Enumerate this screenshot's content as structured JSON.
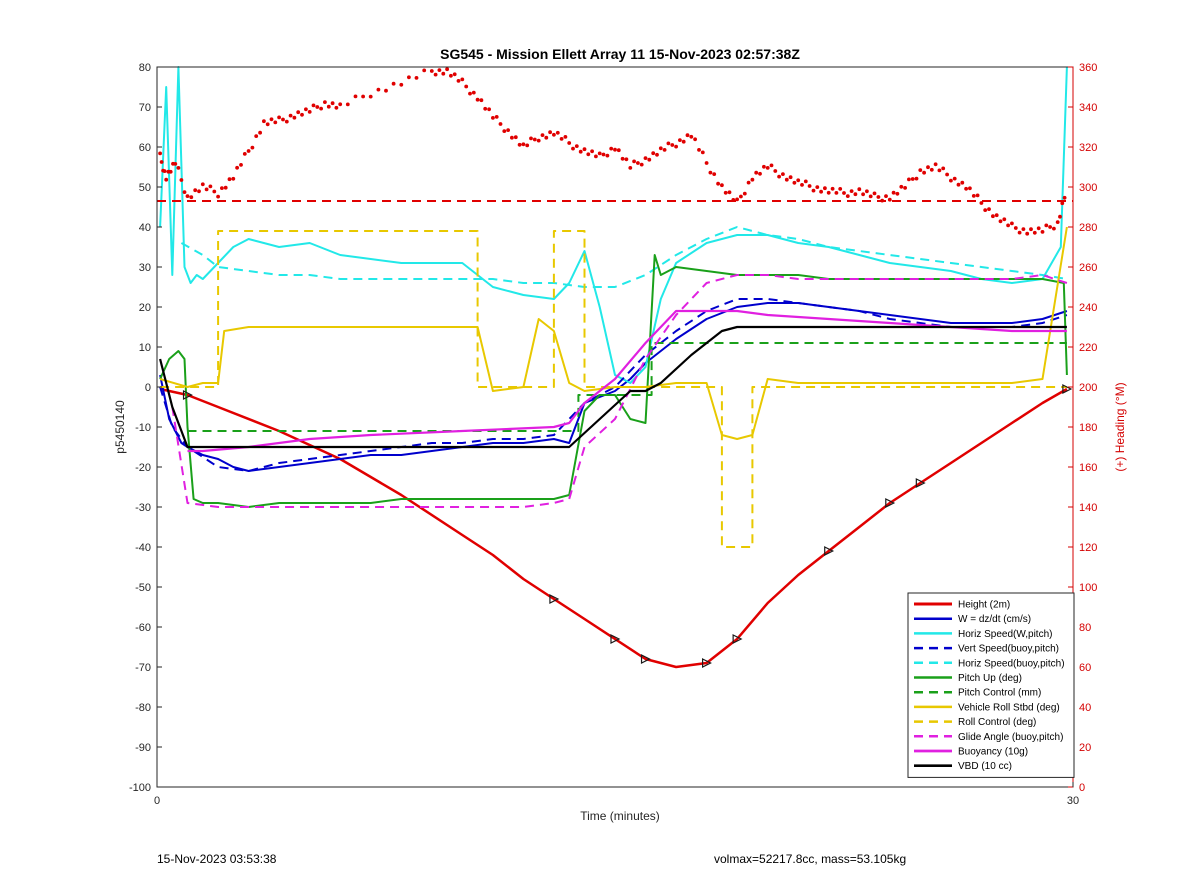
{
  "chart_data": {
    "type": "line",
    "title": "SG545 - Mission Ellett Array 11 15-Nov-2023 02:57:38Z",
    "xlabel": "Time (minutes)",
    "ylabel": "p5450140",
    "ylabel_right": "(+) Heading (°M)",
    "xlim": [
      0,
      30
    ],
    "ylim": [
      -100,
      80
    ],
    "ylim_right": [
      0,
      360
    ],
    "x_ticks": [
      "0",
      "30"
    ],
    "y_ticks": [
      "80",
      "70",
      "60",
      "50",
      "40",
      "30",
      "20",
      "10",
      "0",
      "-10",
      "-20",
      "-30",
      "-40",
      "-50",
      "-60",
      "-70",
      "-80",
      "-90",
      "-100"
    ],
    "y_right_ticks": [
      "360",
      "340",
      "320",
      "300",
      "280",
      "260",
      "240",
      "220",
      "200",
      "180",
      "160",
      "140",
      "120",
      "100",
      "80",
      "60",
      "40",
      "20",
      "0"
    ],
    "legend_position": "bottom-right",
    "grid": false,
    "series": [
      {
        "name": "Height (2m)",
        "color": "#e00000",
        "style": "solid",
        "width": 2.5,
        "x": [
          0.1,
          1,
          2,
          4,
          6,
          8,
          10,
          11,
          12,
          13,
          14,
          15,
          16,
          17,
          18,
          19,
          20,
          21,
          22,
          23,
          24,
          25,
          26,
          27,
          28,
          29,
          29.8
        ],
        "y": [
          -0.5,
          -2,
          -5,
          -11,
          -18,
          -27,
          -37,
          -42,
          -48,
          -53,
          -58,
          -63,
          -68,
          -70,
          -69,
          -63,
          -54,
          -47,
          -41,
          -35,
          -29,
          -24,
          -19,
          -14,
          -9,
          -4,
          -0.5
        ]
      },
      {
        "name": "W = dz/dt (cm/s)",
        "color": "#0000cc",
        "style": "solid",
        "width": 2,
        "x": [
          0.1,
          0.4,
          0.8,
          1,
          1.5,
          2,
          2.5,
          3,
          4,
          5,
          6,
          7,
          8,
          9,
          10,
          11,
          12,
          13,
          13.5,
          14,
          15,
          15.5,
          16,
          17,
          18,
          19,
          20,
          21,
          22,
          23,
          24,
          25,
          26,
          27,
          28,
          29,
          29.8
        ],
        "y": [
          3,
          -8,
          -14,
          -15,
          -17,
          -18,
          -20,
          -21,
          -20,
          -19,
          -18,
          -17,
          -17,
          -16,
          -15,
          -14,
          -14,
          -13,
          -14,
          -4,
          -1,
          2,
          6,
          12,
          17,
          20,
          21,
          21,
          20,
          19,
          18,
          17,
          16,
          16,
          16,
          17,
          19
        ]
      },
      {
        "name": "Horiz Speed(W,pitch)",
        "color": "#22e8e8",
        "style": "solid",
        "width": 2,
        "x": [
          0.1,
          0.3,
          0.5,
          0.7,
          0.9,
          1.1,
          1.3,
          1.5,
          2,
          2.5,
          3,
          4,
          5,
          6,
          7,
          8,
          9,
          10,
          11,
          12,
          13,
          13.5,
          14,
          14.5,
          15,
          15.5,
          16,
          16.5,
          17,
          18,
          19,
          20,
          21,
          22,
          23,
          24,
          25,
          26,
          27,
          28,
          29,
          29.6,
          29.8
        ],
        "y": [
          40,
          75,
          28,
          80,
          30,
          26,
          28,
          27,
          31,
          35,
          37,
          35,
          36,
          33,
          32,
          31,
          31,
          31,
          25,
          23,
          22,
          26,
          34,
          20,
          3,
          1,
          5,
          22,
          31,
          36,
          38,
          38,
          36,
          35,
          33,
          31,
          30,
          29,
          27,
          26,
          27,
          35,
          80
        ]
      },
      {
        "name": "Vert Speed(buoy,pitch)",
        "color": "#0000cc",
        "style": "dashed",
        "width": 2,
        "x": [
          0.1,
          0.5,
          1,
          2,
          3,
          4,
          5,
          6,
          7,
          8,
          9,
          10,
          11,
          12,
          13,
          14,
          14.5,
          15,
          16,
          17,
          18,
          19,
          20,
          21,
          22,
          23,
          24,
          25,
          26,
          27,
          28,
          29,
          29.8
        ],
        "y": [
          0,
          -10,
          -15,
          -20,
          -21,
          -19,
          -18,
          -17,
          -16,
          -15,
          -14,
          -14,
          -13,
          -13,
          -12,
          -4,
          -2,
          0,
          8,
          14,
          19,
          22,
          22,
          21,
          20,
          19,
          17,
          16,
          15,
          15,
          15,
          16,
          18
        ]
      },
      {
        "name": "Horiz Speed(buoy,pitch)",
        "color": "#22e8e8",
        "style": "dashed",
        "width": 2,
        "x": [
          0.8,
          1.5,
          2,
          3,
          4,
          5,
          6,
          7,
          8,
          9,
          10,
          11,
          12,
          13,
          14,
          15,
          16,
          17,
          18,
          19,
          20,
          21,
          22,
          23,
          24,
          25,
          26,
          27,
          28,
          29,
          29.8
        ],
        "y": [
          36,
          33,
          30,
          29,
          28,
          28,
          27,
          27,
          27,
          27,
          27,
          27,
          26,
          26,
          25,
          25,
          28,
          33,
          37,
          40,
          38,
          37,
          35,
          34,
          33,
          32,
          31,
          30,
          29,
          28,
          27
        ]
      },
      {
        "name": "Pitch Up (deg)",
        "color": "#1aa01a",
        "style": "solid",
        "width": 2,
        "x": [
          0.1,
          0.4,
          0.7,
          0.9,
          1,
          1.2,
          1.5,
          2,
          3,
          4,
          5,
          6,
          7,
          8,
          9,
          10,
          11,
          12,
          13,
          13.5,
          14,
          14.5,
          15,
          15.5,
          16,
          16.3,
          16.5,
          17,
          18,
          19,
          20,
          21,
          22,
          23,
          24,
          25,
          26,
          27,
          28,
          29,
          29.7,
          29.8
        ],
        "y": [
          2,
          7,
          9,
          7,
          -10,
          -28,
          -29,
          -29,
          -30,
          -29,
          -29,
          -29,
          -29,
          -28,
          -28,
          -28,
          -28,
          -28,
          -28,
          -27,
          -6,
          -2,
          -2,
          -8,
          -9,
          33,
          28,
          30,
          29,
          28,
          28,
          28,
          27,
          27,
          27,
          27,
          27,
          27,
          27,
          27,
          26,
          3
        ]
      },
      {
        "name": "Pitch Control (mm)",
        "color": "#1aa01a",
        "style": "dashed",
        "width": 2,
        "x": [
          1,
          13.8,
          13.8,
          16.2,
          16.2,
          29.8
        ],
        "y": [
          -11,
          -11,
          -2,
          -2,
          11,
          11
        ]
      },
      {
        "name": "Vehicle Roll Stbd (deg)",
        "color": "#e8c800",
        "style": "solid",
        "width": 2,
        "x": [
          0.1,
          1,
          1.5,
          2,
          2.2,
          3,
          4,
          5,
          6,
          7,
          8,
          9,
          10,
          10.5,
          11,
          12,
          12.5,
          13,
          13.5,
          14,
          15,
          16,
          17,
          18,
          18.5,
          19,
          19.5,
          20,
          21,
          22,
          23,
          24,
          25,
          26,
          27,
          28,
          29,
          29.8
        ],
        "y": [
          2,
          0,
          1,
          1,
          14,
          15,
          15,
          15,
          15,
          15,
          15,
          15,
          15,
          15,
          -1,
          0,
          17,
          14,
          1,
          -1,
          0,
          0,
          1,
          1,
          -12,
          -13,
          -12,
          2,
          1,
          1,
          1,
          1,
          1,
          1,
          1,
          1,
          2,
          40
        ]
      },
      {
        "name": "Roll Control (deg)",
        "color": "#e8c800",
        "style": "dashed",
        "width": 2,
        "x": [
          0.1,
          2,
          2,
          10.5,
          10.5,
          13,
          13,
          14,
          14,
          18.5,
          18.5,
          19.5,
          19.5,
          29.8
        ],
        "y": [
          0,
          0,
          39,
          39,
          0,
          0,
          39,
          39,
          0,
          0,
          -40,
          -40,
          0,
          0
        ]
      },
      {
        "name": "Glide Angle (buoy,pitch)",
        "color": "#e020e0",
        "style": "dashed",
        "width": 2,
        "x": [
          0.5,
          1,
          2,
          3,
          4,
          5,
          6,
          7,
          8,
          9,
          10,
          11,
          12,
          13,
          13.5,
          14,
          15,
          16,
          17,
          18,
          19,
          20,
          21,
          22,
          23,
          24,
          25,
          26,
          27,
          28,
          29,
          29.8
        ],
        "y": [
          -5,
          -29,
          -30,
          -30,
          -30,
          -30,
          -30,
          -30,
          -30,
          -30,
          -30,
          -30,
          -30,
          -29,
          -28,
          -15,
          -8,
          7,
          18,
          26,
          28,
          28,
          27,
          27,
          27,
          27,
          27,
          27,
          27,
          27,
          28,
          26
        ]
      },
      {
        "name": "Buoyancy (10g)",
        "color": "#e020e0",
        "style": "solid",
        "width": 2.2,
        "x": [
          1,
          1.5,
          3,
          5,
          7,
          10,
          13,
          13.5,
          14,
          15,
          16,
          17,
          18,
          19,
          20,
          22,
          24,
          26,
          28,
          29.8
        ],
        "y": [
          -16,
          -16,
          -15,
          -13,
          -12,
          -11,
          -10,
          -9,
          -4,
          2,
          11,
          19,
          19,
          19,
          18,
          17,
          16,
          15,
          14,
          14
        ]
      },
      {
        "name": "VBD (10 cc)",
        "color": "#000000",
        "style": "solid",
        "width": 2.2,
        "x": [
          0.1,
          0.5,
          1,
          1.5,
          3,
          5,
          7,
          9,
          11,
          13.5,
          15.5,
          16,
          16.5,
          17.5,
          18.5,
          19,
          20,
          22,
          24,
          26,
          28,
          29.8
        ],
        "y": [
          7,
          -5,
          -15,
          -15,
          -15,
          -15,
          -15,
          -15,
          -15,
          -15,
          -1,
          -1,
          1,
          8,
          14,
          15,
          15,
          15,
          15,
          15,
          15,
          15
        ]
      }
    ],
    "heading_series": {
      "name": "Heading",
      "color": "#e00000",
      "axis": "right",
      "points": [
        [
          0.1,
          315
        ],
        [
          0.3,
          305
        ],
        [
          0.6,
          312
        ],
        [
          1,
          295
        ],
        [
          1.5,
          300
        ],
        [
          2,
          297
        ],
        [
          2.5,
          305
        ],
        [
          3,
          318
        ],
        [
          3.5,
          332
        ],
        [
          4,
          333
        ],
        [
          4.5,
          336
        ],
        [
          5,
          338
        ],
        [
          5.5,
          342
        ],
        [
          6,
          340
        ],
        [
          7,
          347
        ],
        [
          8,
          352
        ],
        [
          9,
          358
        ],
        [
          9.5,
          358
        ],
        [
          10,
          352
        ],
        [
          10.5,
          345
        ],
        [
          11,
          335
        ],
        [
          11.5,
          328
        ],
        [
          12,
          320
        ],
        [
          12.5,
          325
        ],
        [
          13,
          327
        ],
        [
          13.5,
          322
        ],
        [
          14,
          318
        ],
        [
          14.5,
          315
        ],
        [
          15,
          320
        ],
        [
          15.5,
          310
        ],
        [
          16,
          314
        ],
        [
          16.5,
          318
        ],
        [
          17,
          322
        ],
        [
          17.5,
          326
        ],
        [
          18,
          312
        ],
        [
          18.5,
          300
        ],
        [
          19,
          292
        ],
        [
          19.5,
          305
        ],
        [
          20,
          310
        ],
        [
          20.5,
          306
        ],
        [
          21,
          302
        ],
        [
          21.5,
          300
        ],
        [
          22,
          298
        ],
        [
          22.5,
          297
        ],
        [
          23,
          298
        ],
        [
          23.5,
          295
        ],
        [
          24,
          295
        ],
        [
          24.5,
          300
        ],
        [
          25,
          308
        ],
        [
          25.5,
          310
        ],
        [
          26,
          305
        ],
        [
          26.5,
          300
        ],
        [
          27,
          292
        ],
        [
          27.5,
          285
        ],
        [
          28,
          280
        ],
        [
          28.5,
          278
        ],
        [
          29,
          278
        ],
        [
          29.5,
          282
        ],
        [
          29.8,
          300
        ]
      ]
    },
    "heading_reference": {
      "value": 293,
      "color": "#e00000",
      "style": "dashed"
    }
  },
  "footer": {
    "timestamp": "15-Nov-2023 03:53:38",
    "info": "volmax=52217.8cc, mass=53.105kg"
  }
}
